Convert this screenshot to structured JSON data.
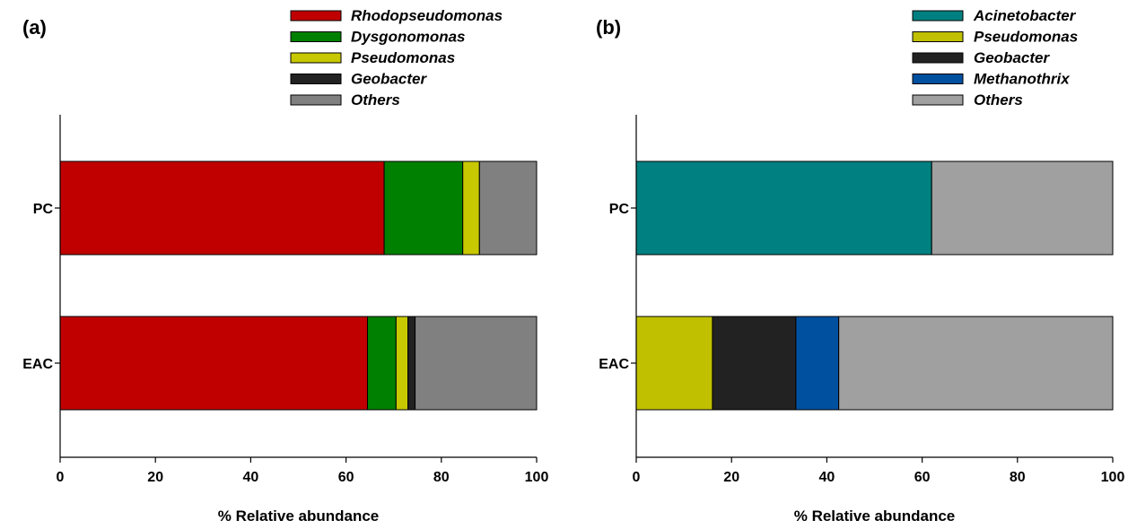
{
  "chart_data": [
    {
      "type": "bar",
      "orientation": "horizontal",
      "stacked": true,
      "panel_label": "(a)",
      "title": "",
      "xlabel": "% Relative abundance",
      "ylabel": "",
      "xlim": [
        0,
        100
      ],
      "xticks": [
        "0",
        "20",
        "40",
        "60",
        "80",
        "100"
      ],
      "categories": [
        "PC",
        "EAC"
      ],
      "grid": false,
      "legend_position": "top-right",
      "series": [
        {
          "name": "Rhodopseudomonas",
          "color": "#c00000",
          "values": [
            68,
            64.5
          ]
        },
        {
          "name": "Dysgonomonas",
          "color": "#008000",
          "values": [
            16.5,
            6
          ]
        },
        {
          "name": "Pseudomonas",
          "color": "#c8c800",
          "values": [
            3.5,
            2.5
          ]
        },
        {
          "name": "Geobacter",
          "color": "#222222",
          "values": [
            0,
            1.5
          ]
        },
        {
          "name": "Others",
          "color": "#808080",
          "values": [
            12,
            25.5
          ]
        }
      ]
    },
    {
      "type": "bar",
      "orientation": "horizontal",
      "stacked": true,
      "panel_label": "(b)",
      "title": "",
      "xlabel": "% Relative abundance",
      "ylabel": "",
      "xlim": [
        0,
        100
      ],
      "xticks": [
        "0",
        "20",
        "40",
        "60",
        "80",
        "100"
      ],
      "categories": [
        "PC",
        "EAC"
      ],
      "grid": false,
      "legend_position": "top-right",
      "series": [
        {
          "name": "Acinetobacter",
          "color": "#008080",
          "values": [
            62,
            0
          ]
        },
        {
          "name": "Pseudomonas",
          "color": "#c0c000",
          "values": [
            0,
            16
          ]
        },
        {
          "name": "Geobacter",
          "color": "#222222",
          "values": [
            0,
            17.5
          ]
        },
        {
          "name": "Methanothrix",
          "color": "#0050a0",
          "values": [
            0,
            9
          ]
        },
        {
          "name": "Others",
          "color": "#a0a0a0",
          "values": [
            38,
            57.5
          ]
        }
      ]
    }
  ]
}
